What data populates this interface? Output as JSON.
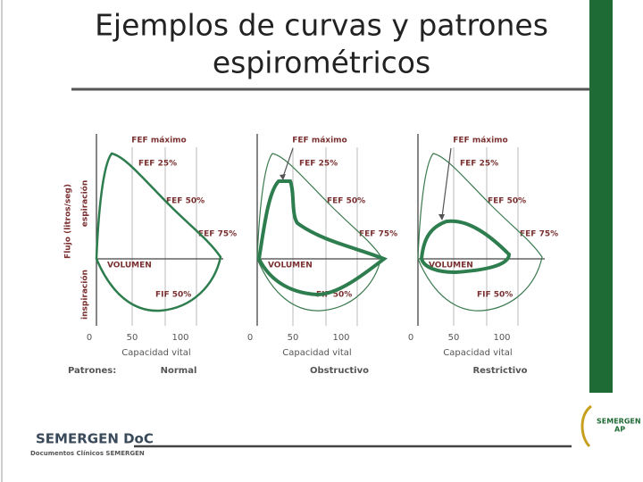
{
  "title_lines": [
    "Ejemplos de curvas y patrones",
    "espirométricos"
  ],
  "y_axis": {
    "label": "Flujo (litros/seg)",
    "upper": "espiración",
    "lower": "inspiración"
  },
  "patterns_label": "Patrones:",
  "panels": [
    {
      "fef_max": "FEF máximo",
      "fef_25": "FEF 25%",
      "fef_50": "FEF 50%",
      "fef_75": "FEF 75%",
      "volume": "VOLUMEN",
      "fif_50": "FIF 50%",
      "x_ticks": [
        "0",
        "50",
        "100"
      ],
      "x_label": "Capacidad vital",
      "pattern": "Normal"
    },
    {
      "fef_max": "FEF máximo",
      "fef_25": "FEF 25%",
      "fef_50": "FEF 50%",
      "fef_75": "FEF 75%",
      "volume": "VOLUMEN",
      "fif_50": "FIF 50%",
      "x_ticks": [
        "0",
        "50",
        "100"
      ],
      "x_label": "Capacidad vital",
      "pattern": "Obstructivo"
    },
    {
      "fef_max": "FEF máximo",
      "fef_25": "FEF 25%",
      "fef_50": "FEF 50%",
      "fef_75": "FEF 75%",
      "volume": "VOLUMEN",
      "fif_50": "FIF 50%",
      "x_ticks": [
        "0",
        "50",
        "100"
      ],
      "x_label": "Capacidad vital",
      "pattern": "Restrictivo"
    }
  ],
  "footer": {
    "brand": "SEMERGEN DoC",
    "subtitle": "Documentos Clínicos SEMERGEN"
  },
  "logo": {
    "name": "SEMERGEN",
    "sub": "AP"
  }
}
